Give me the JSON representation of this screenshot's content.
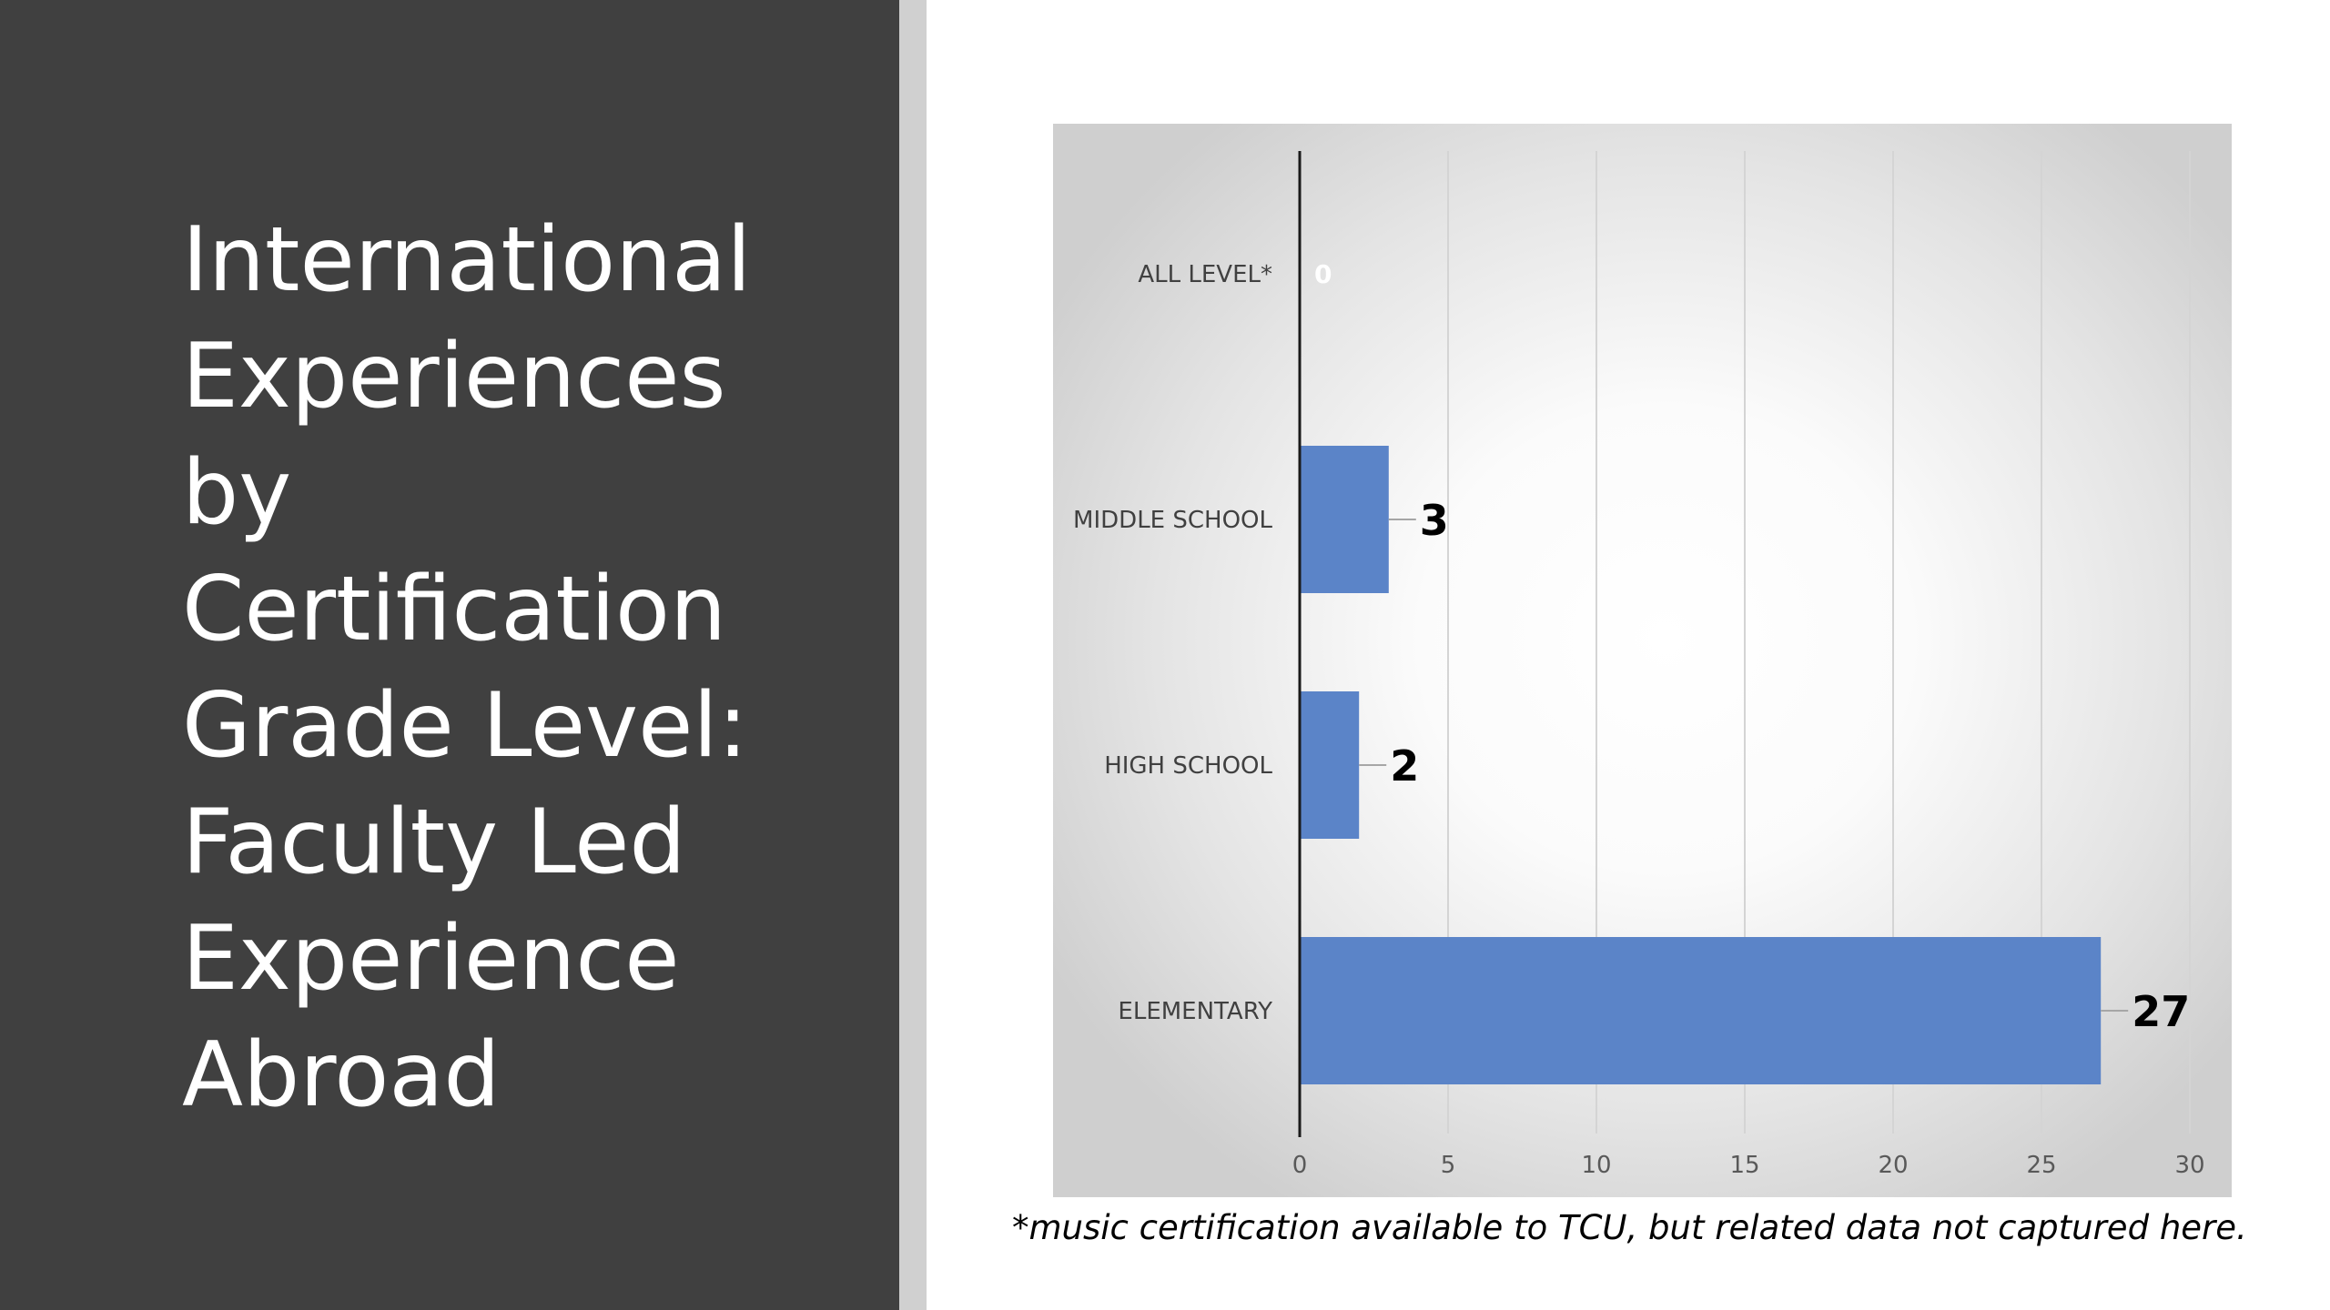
{
  "slide": {
    "title_lines": [
      "International",
      "Experiences",
      "by",
      "Certification",
      "Grade Level:",
      "Faculty Led",
      "Experience",
      "Abroad"
    ],
    "footnote": "*music certification available to TCU, but related data not captured here."
  },
  "colors": {
    "left_panel": "#404040",
    "divider": "#d0d0d0",
    "bar": "#5b84c8",
    "zero_label": "#ffffff"
  },
  "chart_data": {
    "type": "bar",
    "orientation": "horizontal",
    "categories": [
      "ALL LEVEL*",
      "MIDDLE SCHOOL",
      "HIGH SCHOOL",
      "ELEMENTARY"
    ],
    "values": [
      0,
      3,
      2,
      27
    ],
    "data_labels": [
      "0",
      "3",
      "2",
      "27"
    ],
    "xlim": [
      0,
      30
    ],
    "xticks": [
      0,
      5,
      10,
      15,
      20,
      25,
      30
    ],
    "title": "",
    "xlabel": "",
    "ylabel": "",
    "grid": "vertical",
    "legend": "none"
  }
}
